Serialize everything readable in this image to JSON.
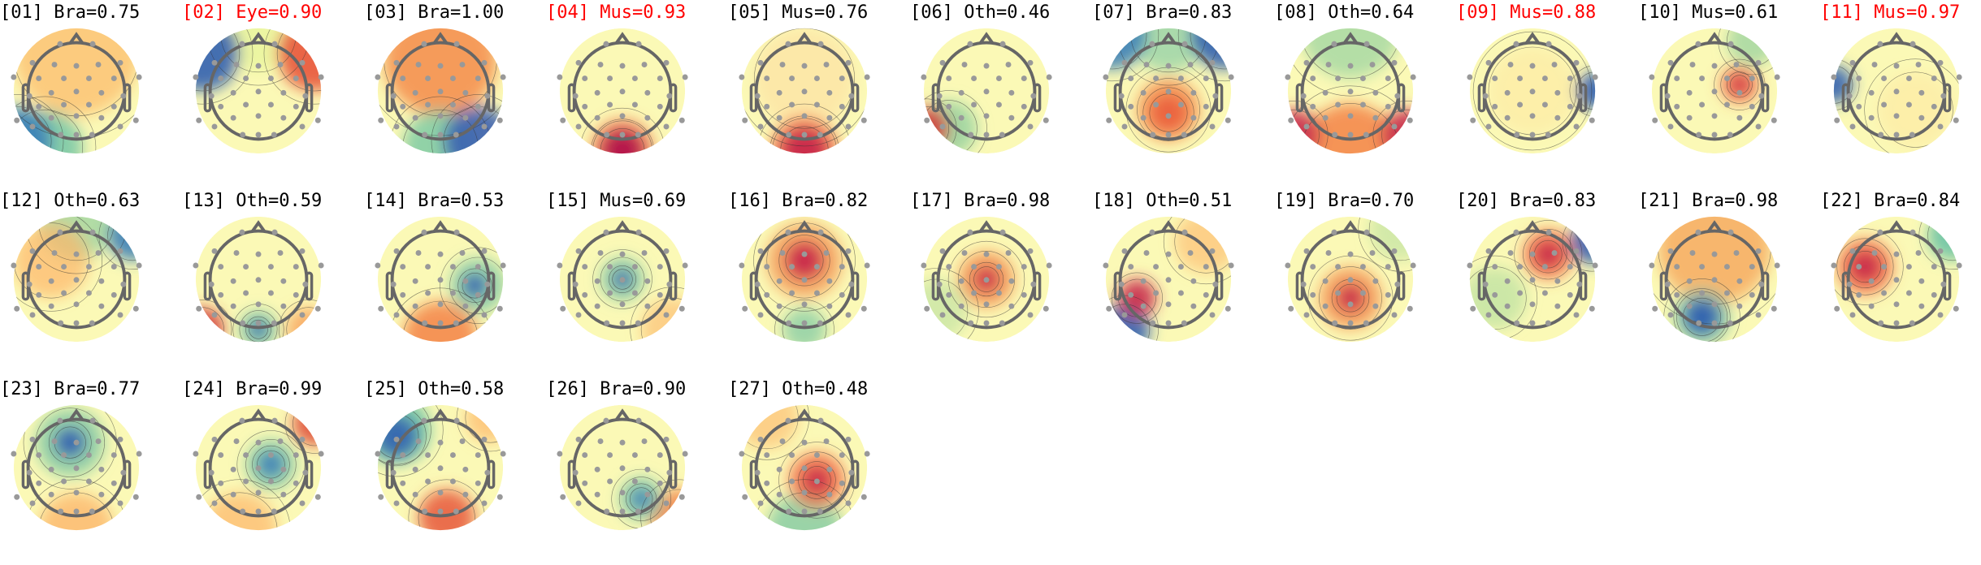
{
  "colors": {
    "normal_label": "#000000",
    "flagged_label": "#ff0000",
    "colormap": "spectral_r",
    "electrode": "#999999",
    "head_outline": "#666666"
  },
  "components": [
    {
      "label": "[01] Bra=0.75",
      "flagged": false
    },
    {
      "label": "[02] Eye=0.90",
      "flagged": true
    },
    {
      "label": "[03] Bra=1.00",
      "flagged": false
    },
    {
      "label": "[04] Mus=0.93",
      "flagged": true
    },
    {
      "label": "[05] Mus=0.76",
      "flagged": false
    },
    {
      "label": "[06] Oth=0.46",
      "flagged": false
    },
    {
      "label": "[07] Bra=0.83",
      "flagged": false
    },
    {
      "label": "[08] Oth=0.64",
      "flagged": false
    },
    {
      "label": "[09] Mus=0.88",
      "flagged": true
    },
    {
      "label": "[10] Mus=0.61",
      "flagged": false
    },
    {
      "label": "[11] Mus=0.97",
      "flagged": true
    },
    {
      "label": "[12] Oth=0.63",
      "flagged": false
    },
    {
      "label": "[13] Oth=0.59",
      "flagged": false
    },
    {
      "label": "[14] Bra=0.53",
      "flagged": false
    },
    {
      "label": "[15] Mus=0.69",
      "flagged": false
    },
    {
      "label": "[16] Bra=0.82",
      "flagged": false
    },
    {
      "label": "[17] Bra=0.98",
      "flagged": false
    },
    {
      "label": "[18] Oth=0.51",
      "flagged": false
    },
    {
      "label": "[19] Bra=0.70",
      "flagged": false
    },
    {
      "label": "[20] Bra=0.83",
      "flagged": false
    },
    {
      "label": "[21] Bra=0.98",
      "flagged": false
    },
    {
      "label": "[22] Bra=0.84",
      "flagged": false
    },
    {
      "label": "[23] Bra=0.77",
      "flagged": false
    },
    {
      "label": "[24] Bra=0.99",
      "flagged": false
    },
    {
      "label": "[25] Oth=0.58",
      "flagged": false
    },
    {
      "label": "[26] Bra=0.90",
      "flagged": false
    },
    {
      "label": "[27] Oth=0.48",
      "flagged": false
    }
  ]
}
